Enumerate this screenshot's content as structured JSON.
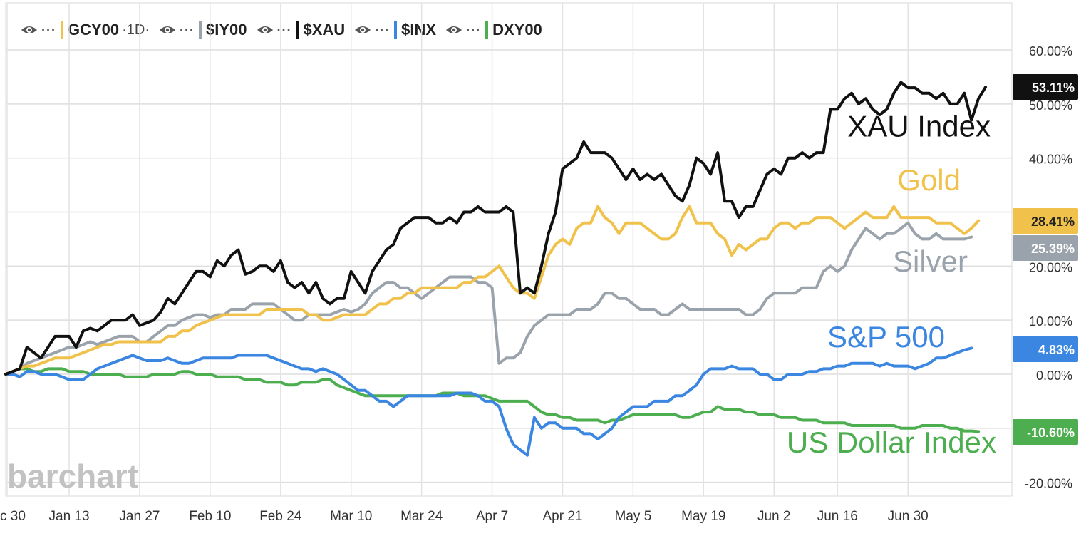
{
  "legend": [
    {
      "symbol": "GCY00",
      "interval": "·1D·",
      "color": "#f0c24b"
    },
    {
      "symbol": "$IY00",
      "interval": "",
      "color": "#9aa3ab"
    },
    {
      "symbol": "$XAU",
      "interval": "",
      "color": "#111111"
    },
    {
      "symbol": "$INX",
      "interval": "",
      "color": "#3a86e0"
    },
    {
      "symbol": "DXY00",
      "interval": "",
      "color": "#4cae4f"
    }
  ],
  "watermark": "barchart",
  "chart_data": {
    "type": "line",
    "ylim": [
      -22,
      63
    ],
    "y_ticks": [
      "60.00%",
      "50.00%",
      "40.00%",
      "30.00%",
      "20.00%",
      "10.00%",
      "0.00%",
      "-10.00%",
      "-20.00%"
    ],
    "y_tick_values": [
      60,
      50,
      40,
      30,
      20,
      10,
      0,
      -10,
      -20
    ],
    "x_ticks": [
      "c 30",
      "Jan 13",
      "Jan 27",
      "Feb 10",
      "Feb 24",
      "Mar 10",
      "Mar 24",
      "Apr 7",
      "Apr 21",
      "May 5",
      "May 19",
      "Jun 2",
      "Jun 16",
      "Jun 30"
    ],
    "x_tick_index": [
      0,
      9,
      19,
      29,
      39,
      49,
      59,
      69,
      79,
      89,
      99,
      109,
      118,
      128
    ],
    "series": [
      {
        "name": "XAU Index",
        "color": "#111111",
        "last_label": "53.11%",
        "label_text_color": "#ffffff",
        "values": [
          0,
          0.5,
          1,
          5,
          4,
          3,
          5,
          7,
          7,
          7,
          5,
          8,
          8.5,
          8,
          9,
          10,
          10,
          10,
          11,
          9,
          9.5,
          10,
          11.5,
          14,
          13,
          15,
          17,
          19,
          19,
          18,
          21,
          20,
          22,
          23,
          18.5,
          19,
          20,
          20,
          19,
          21,
          17,
          16,
          17,
          15,
          17,
          14,
          13,
          14,
          14,
          19,
          17,
          15,
          19,
          21,
          23,
          24,
          27,
          28,
          29,
          29,
          29,
          28,
          28,
          29,
          28,
          30,
          30,
          31,
          30,
          30,
          30,
          31,
          30,
          15,
          16,
          15,
          20,
          26,
          30,
          38,
          39,
          40,
          43,
          41,
          41,
          41,
          40,
          38,
          36,
          38,
          36,
          37,
          36,
          37,
          35,
          33,
          32,
          35,
          40,
          39,
          37,
          41,
          32,
          32,
          29,
          31,
          31,
          34,
          37,
          38,
          37,
          40,
          40,
          41,
          40,
          41,
          41,
          49,
          49,
          51,
          52,
          50,
          51,
          49,
          48,
          49,
          52,
          54,
          53,
          53,
          52,
          52,
          51,
          52,
          50,
          50,
          52,
          47,
          51,
          53.11
        ]
      },
      {
        "name": "Gold",
        "color": "#f0c24b",
        "last_label": "28.41%",
        "label_text_color": "#222222",
        "values": [
          0,
          0.5,
          1,
          1.5,
          1.5,
          2,
          2.5,
          3,
          3,
          3,
          3.5,
          4,
          4.5,
          5,
          5.5,
          5.5,
          6,
          6,
          6,
          6,
          6,
          6,
          6,
          7,
          7,
          8,
          8,
          9,
          9.5,
          10,
          10.5,
          11,
          11,
          11,
          11,
          11,
          11,
          12,
          12,
          12,
          12,
          12,
          12,
          11,
          11,
          10,
          10,
          10.5,
          11,
          11,
          11,
          11,
          12,
          13,
          13,
          14,
          14,
          15,
          15,
          16,
          16,
          16,
          16,
          16,
          16,
          17,
          17,
          18,
          18,
          19,
          20,
          18,
          16,
          15,
          15,
          14,
          18,
          22,
          24,
          25,
          24,
          27,
          28,
          28,
          31,
          29,
          28,
          26,
          28,
          28,
          28,
          27,
          26,
          25,
          25,
          26,
          29,
          31,
          28,
          28,
          28,
          26,
          25,
          22,
          24,
          23,
          24,
          25,
          25,
          27,
          28,
          28,
          27,
          28,
          28,
          29,
          29,
          29,
          28,
          27,
          28,
          29,
          30,
          29,
          29,
          29,
          31,
          29,
          29,
          29,
          29,
          29,
          28,
          28,
          28,
          27,
          26,
          27,
          28.41
        ]
      },
      {
        "name": "Silver",
        "color": "#9aa3ab",
        "last_label": "25.39%",
        "label_text_color": "#ffffff",
        "values": [
          0,
          0.5,
          1,
          2,
          2.5,
          3,
          3.5,
          4,
          4.5,
          5,
          5,
          5.5,
          6,
          5.5,
          6,
          6.5,
          7,
          7,
          7,
          6,
          6,
          7,
          8,
          9,
          9,
          10,
          10.5,
          11,
          11,
          10.5,
          11,
          11,
          12,
          12,
          12,
          13,
          13,
          13,
          13,
          12,
          11,
          10,
          10,
          11,
          11,
          11,
          11,
          11.5,
          12,
          11.5,
          12,
          13,
          15,
          16,
          17,
          17,
          16,
          16,
          15,
          14,
          15,
          16,
          17,
          18,
          18,
          18,
          18,
          17,
          17,
          16,
          2,
          3,
          3,
          4,
          7,
          9,
          10,
          11,
          11,
          11,
          11,
          12,
          12,
          12,
          13,
          15,
          15,
          14,
          14,
          13,
          12,
          12,
          12,
          11,
          11,
          12,
          13,
          12,
          12,
          12,
          12,
          12,
          12,
          12,
          12,
          11,
          11,
          12,
          14,
          15,
          15,
          15,
          15,
          16,
          16,
          16,
          19,
          20,
          19,
          20,
          23,
          25,
          27,
          26,
          25,
          26,
          26,
          27,
          28,
          26,
          25,
          25,
          26,
          25,
          25,
          25,
          25,
          25.39
        ]
      },
      {
        "name": "S&P 500",
        "color": "#3a86e0",
        "last_label": "4.83%",
        "label_text_color": "#ffffff",
        "values": [
          0,
          0,
          -0.5,
          0.5,
          0.5,
          0,
          0,
          0,
          -0.5,
          -1,
          -1,
          -1,
          0,
          1,
          1.5,
          2,
          2.5,
          3,
          3.5,
          3,
          2.5,
          2.5,
          2.5,
          3,
          2.5,
          2,
          2,
          2.5,
          3,
          3,
          3,
          3,
          3,
          3.5,
          3.5,
          3.5,
          3.5,
          3.5,
          3,
          2.5,
          2,
          1.5,
          1,
          1,
          0.5,
          1,
          0.5,
          0,
          -1,
          -2,
          -3,
          -3,
          -4,
          -5,
          -5,
          -6,
          -5,
          -4,
          -4,
          -4,
          -4,
          -4,
          -4,
          -4,
          -3.5,
          -3.5,
          -3.5,
          -4,
          -5,
          -5,
          -6,
          -10,
          -13,
          -14,
          -15,
          -8,
          -10,
          -9,
          -9,
          -10,
          -10,
          -10,
          -11,
          -11,
          -12,
          -11,
          -10,
          -8,
          -7,
          -6,
          -6,
          -6,
          -5,
          -5,
          -5,
          -4,
          -4,
          -3,
          -2,
          0,
          1,
          1,
          1,
          1.5,
          1,
          1,
          1,
          0,
          0,
          -1,
          -1,
          0,
          0,
          0,
          0.5,
          0.5,
          1,
          1,
          1.5,
          1.5,
          2,
          2,
          2,
          2,
          1.5,
          2,
          1.5,
          1.5,
          1.5,
          1,
          1.5,
          2,
          3,
          3,
          3.5,
          4,
          4.5,
          4.83
        ]
      },
      {
        "name": "US Dollar Index",
        "color": "#4cae4f",
        "last_label": "-10.60%",
        "label_text_color": "#ffffff",
        "values": [
          0,
          0.5,
          1,
          1,
          0.5,
          0.5,
          1,
          1,
          1,
          0.5,
          0.5,
          0.5,
          0,
          0,
          0,
          0,
          0,
          -0.5,
          -0.5,
          -0.5,
          -0.5,
          0,
          0,
          0,
          0,
          0.5,
          0.5,
          0,
          0,
          0,
          -0.5,
          -0.5,
          -0.5,
          -0.5,
          -1,
          -1,
          -1,
          -1.5,
          -1.5,
          -1.5,
          -2,
          -2,
          -1.5,
          -1.5,
          -1.5,
          -1,
          -1,
          -2,
          -2.5,
          -3,
          -3.5,
          -4,
          -4,
          -4,
          -4,
          -4,
          -4,
          -4,
          -4,
          -4,
          -4,
          -4,
          -3.5,
          -3.5,
          -3.5,
          -4,
          -4,
          -4,
          -4,
          -4.5,
          -5,
          -5,
          -5,
          -5,
          -5,
          -6,
          -7,
          -7.5,
          -7.5,
          -8,
          -8,
          -8.5,
          -8.5,
          -8.5,
          -8.5,
          -9,
          -8.5,
          -8.5,
          -8,
          -7.5,
          -7.5,
          -7.5,
          -7.5,
          -7.5,
          -7.5,
          -7.5,
          -8,
          -8,
          -7.5,
          -7,
          -7,
          -6,
          -6.5,
          -6.5,
          -6.5,
          -7,
          -7,
          -7.5,
          -7.5,
          -7.5,
          -8,
          -8,
          -8,
          -8.5,
          -8.5,
          -8.5,
          -9,
          -9,
          -9,
          -9,
          -9.5,
          -9.5,
          -9.5,
          -9.5,
          -9.5,
          -9.5,
          -9.5,
          -10,
          -10,
          -10,
          -9.5,
          -9.5,
          -9.5,
          -9.5,
          -10,
          -10,
          -10.5,
          -10.5,
          -10.6
        ]
      }
    ],
    "annotations": [
      {
        "text": "XAU Index",
        "color": "#111111",
        "at_x": 120,
        "at_y": 44
      },
      {
        "text": "Gold",
        "color": "#f0c24b",
        "at_x": 120,
        "at_y": 34
      },
      {
        "text": "Silver",
        "color": "#9aa3ab",
        "at_x": 120,
        "at_y": 19
      },
      {
        "text": "S&P 500",
        "color": "#3a86e0",
        "at_x": 120,
        "at_y": 5
      },
      {
        "text": "US Dollar Index",
        "color": "#4cae4f",
        "at_x": 120,
        "at_y": -14.5
      }
    ]
  }
}
